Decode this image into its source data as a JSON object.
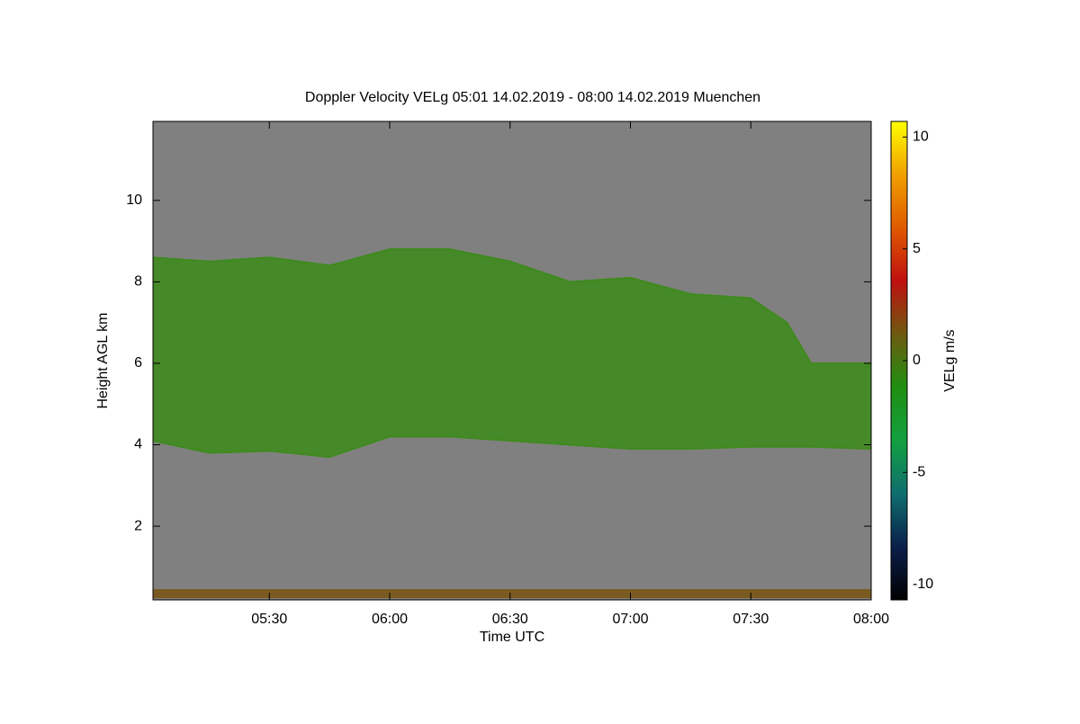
{
  "chart_data": {
    "type": "heatmap",
    "title": "Doppler Velocity VELg   05:01 14.02.2019 - 08:00 14.02.2019 Muenchen",
    "x_label": "Time UTC",
    "y_label": "Height AGL km",
    "colorbar_label": "VELg m/s",
    "x": [
      5.0167,
      5.25,
      5.5,
      5.75,
      6.0,
      6.25,
      6.5,
      6.75,
      7.0,
      7.25,
      7.5,
      7.65,
      7.75,
      8.0
    ],
    "cloud_top": [
      8.6,
      8.5,
      8.6,
      8.4,
      8.8,
      8.8,
      8.5,
      8.0,
      8.1,
      7.7,
      7.6,
      7.0,
      6.0,
      6.0
    ],
    "cloud_base": [
      4.1,
      3.8,
      3.85,
      3.7,
      4.2,
      4.2,
      4.1,
      4.0,
      3.9,
      3.9,
      3.95,
      3.95,
      3.95,
      3.9
    ],
    "color": "#3f8a1e",
    "background": "#808080",
    "xlim": [
      5.0167,
      8.0
    ],
    "xticks": [
      {
        "value": 5.5,
        "label": "05:30"
      },
      {
        "value": 6.0,
        "label": "06:00"
      },
      {
        "value": 6.5,
        "label": "06:30"
      },
      {
        "value": 7.0,
        "label": "07:00"
      },
      {
        "value": 7.5,
        "label": "07:30"
      },
      {
        "value": 8.0,
        "label": "08:00"
      }
    ],
    "ylim": [
      0.19,
      11.94
    ],
    "yticks": [
      2,
      4,
      6,
      8,
      10
    ],
    "clim": [
      -10.7,
      10.7
    ],
    "cticks": [
      -10,
      -5,
      0,
      5,
      10
    ],
    "colormap": [
      "#000000",
      "#0b1f4a",
      "#0f6e6e",
      "#12a040",
      "#1f8f10",
      "#6e5a10",
      "#c01010",
      "#e05a00",
      "#f0a000",
      "#ffff00"
    ]
  }
}
